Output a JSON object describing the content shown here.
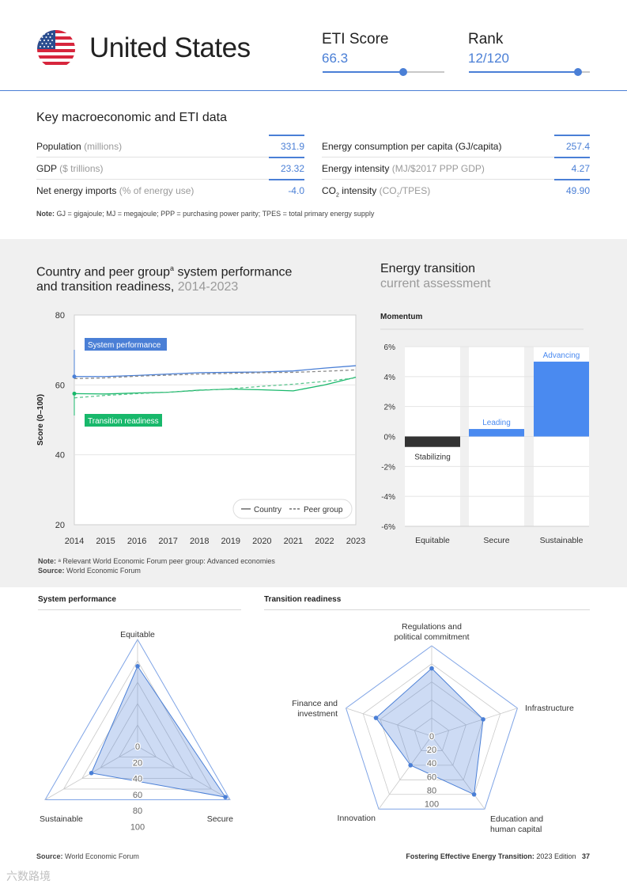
{
  "header": {
    "country": "United States",
    "eti_label": "ETI Score",
    "eti_value": "66.3",
    "eti_level": 0.663,
    "rank_label": "Rank",
    "rank_value": "12/120",
    "rank_level": 0.9
  },
  "key_data": {
    "title": "Key macroeconomic and ETI data",
    "left": [
      {
        "label": "Population",
        "unit": "(millions)",
        "value": "331.9"
      },
      {
        "label": "GDP",
        "unit": "($ trillions)",
        "value": "23.32"
      },
      {
        "label": "Net energy imports",
        "unit": "(% of energy use)",
        "value": "-4.0"
      }
    ],
    "right": [
      {
        "label": "Energy consumption per capita (GJ/capita)",
        "unit": "",
        "value": "257.4"
      },
      {
        "label": "Energy intensity",
        "unit": "(MJ/$2017 PPP GDP)",
        "value": "4.27"
      },
      {
        "label": "CO",
        "sub": "2",
        "label_after": " intensity",
        "unit": "(CO",
        "unit_sub": "2",
        "unit_after": "/TPES)",
        "value": "49.90"
      }
    ],
    "note_bold": "Note:",
    "note": " GJ = gigajoule; MJ = megajoule; PPP = purchasing power parity; TPES = total primary energy supply"
  },
  "performance": {
    "title_line1": "Country and peer group",
    "title_sup": "a",
    "title_line1_after": " system performance",
    "title_line2": "and transition readiness,",
    "title_years": " 2014-2023",
    "ylabel": "Score (0–100)",
    "note_bold": "Note:",
    "note": " ᵃ Relevant World Economic Forum peer group: Advanced economies",
    "source_bold": "Source:",
    "source": " World Economic Forum"
  },
  "assessment": {
    "title_line1": "Energy transition",
    "title_line2": "current assessment",
    "subtitle": "Momentum"
  },
  "radar_titles": {
    "system": "System performance",
    "transition": "Transition readiness"
  },
  "footer": {
    "source_bold": "Source:",
    "source": " World Economic Forum",
    "pub_bold": "Fostering Effective Energy Transition:",
    "pub": " 2023 Edition",
    "page": "37"
  },
  "watermark": "六数路境",
  "chart_data": [
    {
      "type": "line",
      "x": [
        2014,
        2015,
        2016,
        2017,
        2018,
        2019,
        2020,
        2021,
        2022,
        2023
      ],
      "series": [
        {
          "name": "System performance",
          "group": "Country",
          "color": "#4a7fd6",
          "dash": false,
          "values": [
            62.4,
            62.4,
            62.7,
            63.1,
            63.5,
            63.6,
            63.7,
            64.0,
            64.8,
            65.5
          ]
        },
        {
          "name": "System performance",
          "group": "Peer group",
          "color": "#4a7fd6",
          "dash": true,
          "values": [
            61.8,
            62.0,
            62.5,
            62.8,
            63.1,
            63.3,
            63.5,
            63.6,
            63.9,
            64.3
          ]
        },
        {
          "name": "Transition readiness",
          "group": "Country",
          "color": "#18b86b",
          "dash": false,
          "values": [
            57.5,
            57.4,
            57.7,
            57.9,
            58.5,
            58.8,
            58.6,
            58.3,
            60.0,
            62.2
          ]
        },
        {
          "name": "Transition readiness",
          "group": "Peer group",
          "color": "#18b86b",
          "dash": true,
          "values": [
            56.3,
            57.0,
            57.5,
            57.9,
            58.4,
            58.9,
            59.6,
            60.2,
            61.0,
            62.0
          ]
        }
      ],
      "ylim": [
        20,
        80
      ],
      "yticks": [
        20,
        40,
        60,
        80
      ],
      "ylabel": "Score (0–100)",
      "annotations": [
        "System performance",
        "Transition readiness"
      ],
      "legend": [
        "Country",
        "Peer group"
      ],
      "legend_position": "bottom-right",
      "grid": true
    },
    {
      "type": "bar",
      "title": "Momentum",
      "categories": [
        "Equitable",
        "Secure",
        "Sustainable"
      ],
      "values": [
        -0.7,
        0.5,
        5.0
      ],
      "bar_labels": [
        "Stabilizing",
        "Leading",
        "Advancing"
      ],
      "bar_colors": [
        "#333333",
        "#4a8af0",
        "#4a8af0"
      ],
      "ylim": [
        -6,
        6
      ],
      "yticks": [
        "6%",
        "4%",
        "2%",
        "0%",
        "-2%",
        "-4%",
        "-6%"
      ]
    },
    {
      "type": "radar",
      "title": "System performance",
      "axes": [
        "Equitable",
        "Secure",
        "Sustainable"
      ],
      "values": [
        75,
        95,
        50
      ],
      "range": [
        0,
        100
      ],
      "ticks": [
        "0",
        "20",
        "40",
        "60",
        "80",
        "100"
      ]
    },
    {
      "type": "radar",
      "title": "Transition readiness",
      "axes": [
        "Regulations and political commitment",
        "Infrastructure",
        "Education and human capital",
        "Innovation",
        "Finance and investment"
      ],
      "values": [
        75,
        60,
        80,
        40,
        65
      ],
      "range": [
        0,
        100
      ],
      "ticks": [
        "0",
        "20",
        "40",
        "60",
        "80",
        "100"
      ]
    }
  ]
}
